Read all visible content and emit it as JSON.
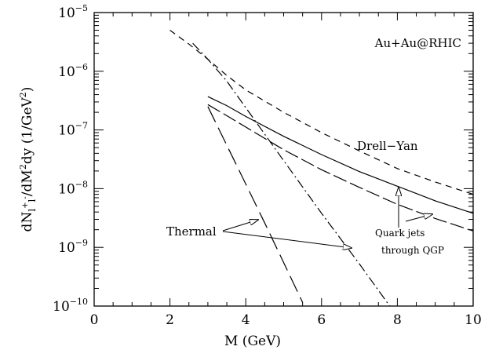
{
  "chart_data": {
    "type": "line",
    "title": "",
    "xlabel": "M (GeV)",
    "ylabel": "dN_{l+l-}/dM^2dy (1/GeV^2)",
    "ylabel_parts": {
      "main": "dN",
      "sub": "l",
      "sub_sup": "+",
      "sub2": "l",
      "sub2_sup": "-",
      "mid": "/dM",
      "mid_sup": "2",
      "tail": "dy (1/GeV",
      "tail_sup": "2",
      "end": ")"
    },
    "xlim": [
      0,
      10
    ],
    "ylim": [
      1e-10,
      1e-05
    ],
    "yscale": "log",
    "x_ticks": [
      0,
      2,
      4,
      6,
      8,
      10
    ],
    "y_ticks": [
      {
        "value": 1e-10,
        "base": "10",
        "exp": "−10"
      },
      {
        "value": 1e-09,
        "base": "10",
        "exp": "−9"
      },
      {
        "value": 1e-08,
        "base": "10",
        "exp": "−8"
      },
      {
        "value": 1e-07,
        "base": "10",
        "exp": "−7"
      },
      {
        "value": 1e-06,
        "base": "10",
        "exp": "−6"
      },
      {
        "value": 1e-05,
        "base": "10",
        "exp": "−5"
      }
    ],
    "grid": false,
    "legend": "none",
    "series": [
      {
        "name": "Drell-Yan",
        "dash": "dashed",
        "x": [
          2.0,
          2.5,
          3.0,
          3.5,
          4.0,
          5.0,
          6.0,
          7.0,
          8.0,
          9.0,
          10.0
        ],
        "y": [
          5e-06,
          2.9e-06,
          1.6e-06,
          8.5e-07,
          4.8e-07,
          2e-07,
          9e-08,
          4.4e-08,
          2.2e-08,
          1.3e-08,
          8e-09
        ]
      },
      {
        "name": "",
        "dash": "solid",
        "x": [
          3.0,
          3.5,
          4.0,
          5.0,
          6.0,
          7.0,
          8.0,
          9.0,
          10.0
        ],
        "y": [
          3.7e-07,
          2.6e-07,
          1.7e-07,
          7.8e-08,
          3.8e-08,
          1.95e-08,
          1.1e-08,
          6.2e-09,
          3.8e-09
        ]
      },
      {
        "name": "Quark jets through QGP",
        "dash": "longdash",
        "x": [
          3.0,
          3.5,
          4.0,
          5.0,
          6.0,
          7.0,
          8.0,
          9.0,
          10.0
        ],
        "y": [
          2.7e-07,
          1.75e-07,
          1.12e-07,
          4.6e-08,
          2.1e-08,
          1.05e-08,
          5.4e-09,
          3.1e-09,
          1.9e-09
        ]
      },
      {
        "name": "Thermal",
        "dash": "dashdot",
        "x": [
          2.6,
          3.0,
          3.5,
          4.0,
          5.0,
          6.0,
          7.0,
          7.8
        ],
        "y": [
          3e-06,
          1.6e-06,
          6.8e-07,
          2.4e-07,
          3e-08,
          3.8e-09,
          5.2e-10,
          1e-10
        ]
      },
      {
        "name": "Thermal",
        "dash": "longdash-wide",
        "x": [
          3.0,
          3.5,
          4.0,
          4.5,
          5.0,
          5.5
        ],
        "y": [
          2.5e-07,
          5.5e-08,
          1.2e-08,
          2.6e-09,
          5.5e-10,
          1.15e-10
        ]
      }
    ],
    "annotations": {
      "system": "Au+Au@RHIC",
      "drell_yan": "Drell−Yan",
      "thermal": "Thermal",
      "quark_jets_line1": "Quark jets",
      "quark_jets_line2": "through QGP"
    }
  }
}
